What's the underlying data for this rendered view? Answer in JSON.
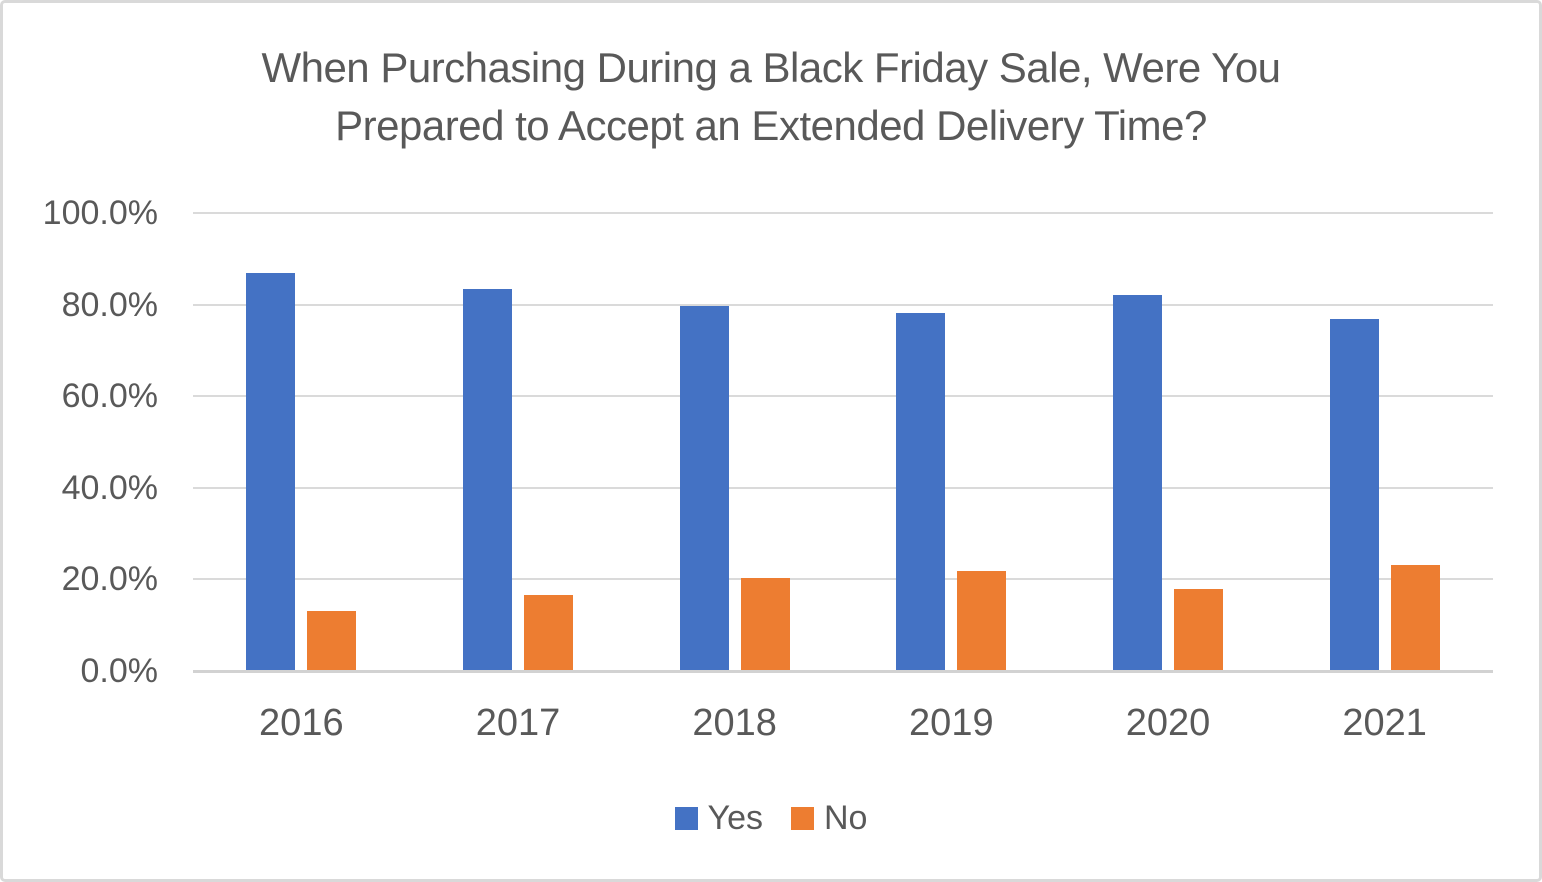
{
  "title": {
    "line1": "When Purchasing During a Black Friday Sale, Were You",
    "line2": "Prepared to Accept an Extended Delivery Time?"
  },
  "chart_data": {
    "type": "bar",
    "title": "When Purchasing During a Black Friday Sale, Were You Prepared to Accept an Extended Delivery Time?",
    "categories": [
      "2016",
      "2017",
      "2018",
      "2019",
      "2020",
      "2021"
    ],
    "series": [
      {
        "name": "Yes",
        "color": "#4472C4",
        "values": [
          87.0,
          83.4,
          79.7,
          78.1,
          82.0,
          76.9
        ]
      },
      {
        "name": "No",
        "color": "#ED7D31",
        "values": [
          13.0,
          16.6,
          20.3,
          21.9,
          18.0,
          23.1
        ]
      }
    ],
    "ylabel": "",
    "xlabel": "",
    "ylim": [
      0,
      100
    ],
    "y_ticks": [
      {
        "value": 100,
        "label": "100.0%"
      },
      {
        "value": 80,
        "label": "80.0%"
      },
      {
        "value": 60,
        "label": "60.0%"
      },
      {
        "value": 40,
        "label": "40.0%"
      },
      {
        "value": 20,
        "label": "20.0%"
      },
      {
        "value": 0,
        "label": "0.0%"
      }
    ],
    "grid": true,
    "legend_position": "bottom"
  },
  "colors": {
    "text": "#595959",
    "gridline": "#DADADA",
    "axis_line": "#D2D2D2",
    "background": "#FFFFFF",
    "frame_border": "#D9D9D9",
    "series_yes": "#4472C4",
    "series_no": "#ED7D31"
  }
}
